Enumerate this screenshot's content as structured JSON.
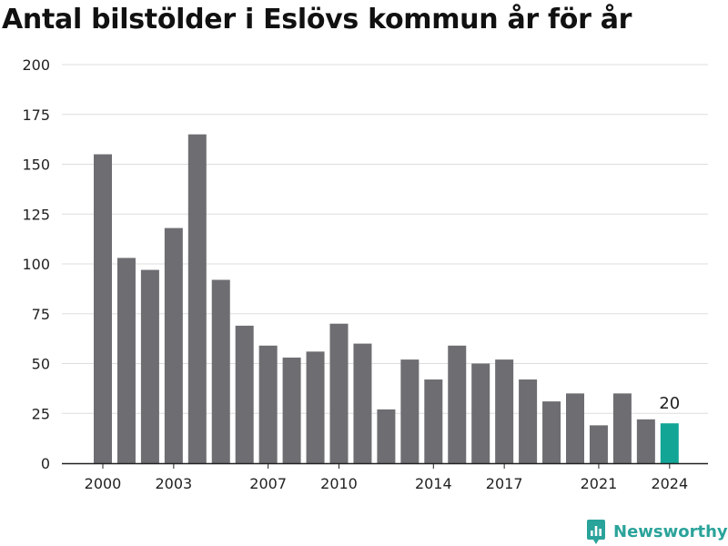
{
  "chart_data": {
    "type": "bar",
    "title": "Antal bilstölder i Eslövs kommun år för år",
    "xlabel": "",
    "ylabel": "",
    "categories": [
      "2000",
      "2001",
      "2002",
      "2003",
      "2004",
      "2005",
      "2006",
      "2007",
      "2008",
      "2009",
      "2010",
      "2011",
      "2012",
      "2013",
      "2014",
      "2015",
      "2016",
      "2017",
      "2018",
      "2019",
      "2020",
      "2021",
      "2022",
      "2023",
      "2024"
    ],
    "values": [
      155,
      103,
      97,
      118,
      165,
      92,
      69,
      59,
      53,
      56,
      70,
      60,
      27,
      52,
      42,
      59,
      50,
      52,
      42,
      31,
      35,
      19,
      35,
      22,
      20
    ],
    "x_tick_labels": [
      "2000",
      "2003",
      "2007",
      "2010",
      "2014",
      "2017",
      "2021",
      "2024"
    ],
    "y_ticks": [
      0,
      25,
      50,
      75,
      100,
      125,
      150,
      175,
      200
    ],
    "ylim": [
      0,
      200
    ],
    "grid": true,
    "highlight": {
      "category": "2024",
      "label": "20"
    },
    "colors": {
      "bar": "#6e6d72",
      "highlight": "#12a596",
      "grid": "#dddddd",
      "axis": "#222222",
      "text": "#222222"
    }
  },
  "branding": {
    "name": "Newsworthy",
    "icon": "newsworthy-logo-icon",
    "color": "#2aa39a"
  }
}
